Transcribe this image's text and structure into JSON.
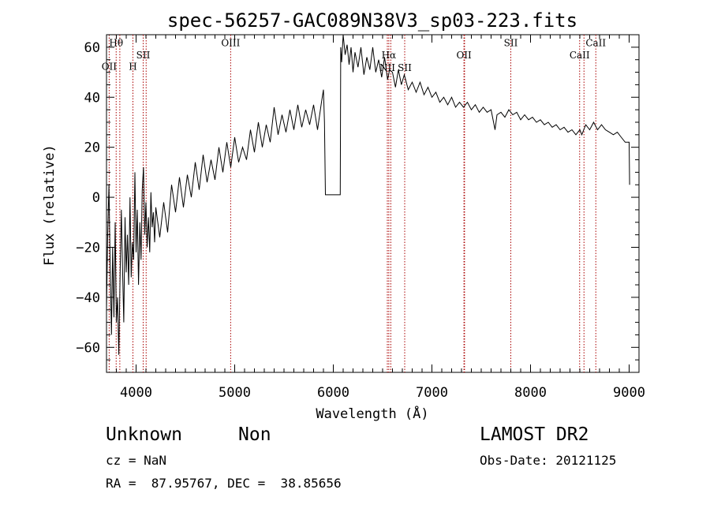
{
  "chart_data": {
    "type": "line",
    "title": "spec-56257-GAC089N38V3_sp03-223.fits",
    "xlabel": "Wavelength (Å)",
    "ylabel": "Flux (relative)",
    "xlim": [
      3700,
      9100
    ],
    "ylim": [
      -70,
      65
    ],
    "xticks": [
      4000,
      5000,
      6000,
      7000,
      8000,
      9000
    ],
    "yticks": [
      -60,
      -40,
      -20,
      0,
      20,
      40,
      60
    ],
    "xtick_labels": [
      "4000",
      "5000",
      "6000",
      "7000",
      "8000",
      "9000"
    ],
    "ytick_labels": [
      "−60",
      "−40",
      "−20",
      "0",
      "20",
      "40",
      "60"
    ],
    "grid": false,
    "line_color": "#000000",
    "marker_color": "#aa0000",
    "lines": [
      {
        "label": "Hθ",
        "x": 3798,
        "y": 60.5
      },
      {
        "label": "OII",
        "x": 3727,
        "y": 51
      },
      {
        "label": "H",
        "x": 3968,
        "y": 51
      },
      {
        "label": "SII",
        "x": 4072,
        "y": 55.5
      },
      {
        "label": "OIII",
        "x": 4959,
        "y": 60.5
      },
      {
        "label": "Hα",
        "x": 6563,
        "y": 55.5
      },
      {
        "label": "NII",
        "x": 6548,
        "y": 50.5
      },
      {
        "label": "SII",
        "x": 6724,
        "y": 50.5
      },
      {
        "label": "OII",
        "x": 7325,
        "y": 55.5
      },
      {
        "label": "SII",
        "x": 7800,
        "y": 60.5
      },
      {
        "label": "CaII",
        "x": 8498,
        "y": 55.5
      },
      {
        "label": "CaII",
        "x": 8662,
        "y": 60.5
      }
    ],
    "extra_markers": [
      3835,
      4102,
      6583,
      7331,
      8542
    ],
    "spectrum": [
      [
        3700,
        -45
      ],
      [
        3712,
        -15
      ],
      [
        3725,
        5
      ],
      [
        3738,
        -30
      ],
      [
        3750,
        -55
      ],
      [
        3762,
        -20
      ],
      [
        3775,
        -48
      ],
      [
        3788,
        -10
      ],
      [
        3800,
        -50
      ],
      [
        3812,
        -40
      ],
      [
        3825,
        -63
      ],
      [
        3838,
        -30
      ],
      [
        3850,
        -5
      ],
      [
        3862,
        -28
      ],
      [
        3875,
        -50
      ],
      [
        3888,
        -8
      ],
      [
        3900,
        -30
      ],
      [
        3912,
        -15
      ],
      [
        3925,
        -35
      ],
      [
        3938,
        0
      ],
      [
        3950,
        -32
      ],
      [
        3962,
        -18
      ],
      [
        3975,
        -25
      ],
      [
        3988,
        10
      ],
      [
        4000,
        -22
      ],
      [
        4012,
        -5
      ],
      [
        4025,
        -35
      ],
      [
        4038,
        -10
      ],
      [
        4050,
        -25
      ],
      [
        4062,
        3
      ],
      [
        4075,
        12
      ],
      [
        4088,
        -15
      ],
      [
        4100,
        -2
      ],
      [
        4112,
        -20
      ],
      [
        4125,
        -8
      ],
      [
        4138,
        -22
      ],
      [
        4150,
        2
      ],
      [
        4162,
        -12
      ],
      [
        4175,
        -6
      ],
      [
        4188,
        -18
      ],
      [
        4200,
        -4
      ],
      [
        4240,
        -16
      ],
      [
        4280,
        -2
      ],
      [
        4320,
        -14
      ],
      [
        4360,
        5
      ],
      [
        4400,
        -6
      ],
      [
        4440,
        8
      ],
      [
        4480,
        -4
      ],
      [
        4520,
        9
      ],
      [
        4560,
        0
      ],
      [
        4600,
        14
      ],
      [
        4640,
        3
      ],
      [
        4680,
        17
      ],
      [
        4720,
        6
      ],
      [
        4760,
        15
      ],
      [
        4800,
        7
      ],
      [
        4840,
        20
      ],
      [
        4880,
        10
      ],
      [
        4920,
        22
      ],
      [
        4960,
        12
      ],
      [
        5000,
        24
      ],
      [
        5040,
        14
      ],
      [
        5080,
        20
      ],
      [
        5120,
        15
      ],
      [
        5160,
        27
      ],
      [
        5200,
        18
      ],
      [
        5240,
        30
      ],
      [
        5280,
        20
      ],
      [
        5320,
        29
      ],
      [
        5360,
        22
      ],
      [
        5400,
        36
      ],
      [
        5440,
        25
      ],
      [
        5480,
        33
      ],
      [
        5520,
        26
      ],
      [
        5560,
        35
      ],
      [
        5600,
        27
      ],
      [
        5640,
        37
      ],
      [
        5680,
        28
      ],
      [
        5720,
        35
      ],
      [
        5760,
        29
      ],
      [
        5800,
        37
      ],
      [
        5840,
        27
      ],
      [
        5880,
        38
      ],
      [
        5900,
        43
      ],
      [
        5910,
        30
      ],
      [
        5920,
        1
      ],
      [
        6070,
        1
      ],
      [
        6075,
        60
      ],
      [
        6085,
        54
      ],
      [
        6100,
        65
      ],
      [
        6120,
        57
      ],
      [
        6140,
        61
      ],
      [
        6160,
        53
      ],
      [
        6180,
        60
      ],
      [
        6200,
        50
      ],
      [
        6220,
        58
      ],
      [
        6250,
        52
      ],
      [
        6280,
        60
      ],
      [
        6310,
        49
      ],
      [
        6340,
        56
      ],
      [
        6370,
        51
      ],
      [
        6400,
        60
      ],
      [
        6430,
        50
      ],
      [
        6460,
        55
      ],
      [
        6490,
        48
      ],
      [
        6520,
        56
      ],
      [
        6550,
        47
      ],
      [
        6570,
        51
      ],
      [
        6600,
        50
      ],
      [
        6630,
        44
      ],
      [
        6660,
        51
      ],
      [
        6690,
        45
      ],
      [
        6720,
        49
      ],
      [
        6760,
        43
      ],
      [
        6800,
        46
      ],
      [
        6840,
        42
      ],
      [
        6880,
        46
      ],
      [
        6920,
        41
      ],
      [
        6960,
        44
      ],
      [
        7000,
        40
      ],
      [
        7040,
        42
      ],
      [
        7080,
        38
      ],
      [
        7120,
        40
      ],
      [
        7160,
        37
      ],
      [
        7200,
        40
      ],
      [
        7240,
        36
      ],
      [
        7280,
        38
      ],
      [
        7320,
        36
      ],
      [
        7360,
        38
      ],
      [
        7400,
        35
      ],
      [
        7440,
        37
      ],
      [
        7480,
        34
      ],
      [
        7520,
        36
      ],
      [
        7560,
        34
      ],
      [
        7600,
        35
      ],
      [
        7640,
        27
      ],
      [
        7660,
        33
      ],
      [
        7700,
        34
      ],
      [
        7740,
        32
      ],
      [
        7780,
        35
      ],
      [
        7820,
        33
      ],
      [
        7860,
        34
      ],
      [
        7900,
        31
      ],
      [
        7940,
        33
      ],
      [
        7980,
        31
      ],
      [
        8020,
        32
      ],
      [
        8060,
        30
      ],
      [
        8100,
        31
      ],
      [
        8140,
        29
      ],
      [
        8180,
        30
      ],
      [
        8220,
        28
      ],
      [
        8260,
        29
      ],
      [
        8300,
        27
      ],
      [
        8340,
        28
      ],
      [
        8380,
        26
      ],
      [
        8420,
        27
      ],
      [
        8460,
        25
      ],
      [
        8500,
        27
      ],
      [
        8520,
        25
      ],
      [
        8560,
        29
      ],
      [
        8600,
        27
      ],
      [
        8640,
        30
      ],
      [
        8680,
        27
      ],
      [
        8720,
        29
      ],
      [
        8760,
        27
      ],
      [
        8800,
        26
      ],
      [
        8840,
        25
      ],
      [
        8880,
        26
      ],
      [
        8920,
        24
      ],
      [
        8960,
        22
      ],
      [
        9000,
        22
      ],
      [
        9005,
        5
      ]
    ]
  },
  "info": {
    "class": "Unknown",
    "subclass": "Non",
    "survey": "LAMOST DR2",
    "cz": "cz = NaN",
    "obs_date": "Obs-Date: 20121125",
    "radec": "RA =  87.95767, DEC =  38.85656"
  }
}
